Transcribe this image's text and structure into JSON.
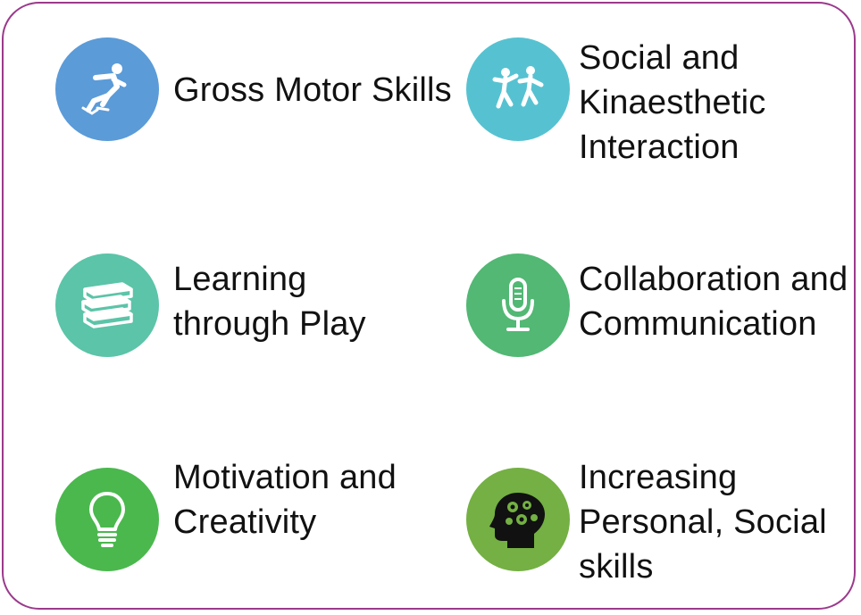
{
  "items": [
    {
      "id": "gross-motor",
      "color": "#5b9bd8",
      "icon": "skater-icon",
      "lines": [
        "Gross Motor Skills"
      ]
    },
    {
      "id": "social-kinaesthetic",
      "color": "#56c2d1",
      "icon": "dancing-people-icon",
      "lines": [
        "Social and",
        "Kinaesthetic",
        "Interaction"
      ]
    },
    {
      "id": "learning-play",
      "color": "#5cc4a8",
      "icon": "books-icon",
      "lines": [
        "Learning",
        "through Play"
      ]
    },
    {
      "id": "collaboration",
      "color": "#52b874",
      "icon": "microphone-icon",
      "lines": [
        "Collaboration and",
        "Communication"
      ]
    },
    {
      "id": "motivation",
      "color": "#4bb84e",
      "icon": "lightbulb-icon",
      "lines": [
        "Motivation and",
        "Creativity"
      ]
    },
    {
      "id": "personal-social",
      "color": "#74b043",
      "icon": "head-gears-icon",
      "lines": [
        "Increasing",
        "Personal, Social",
        "skills"
      ]
    }
  ]
}
